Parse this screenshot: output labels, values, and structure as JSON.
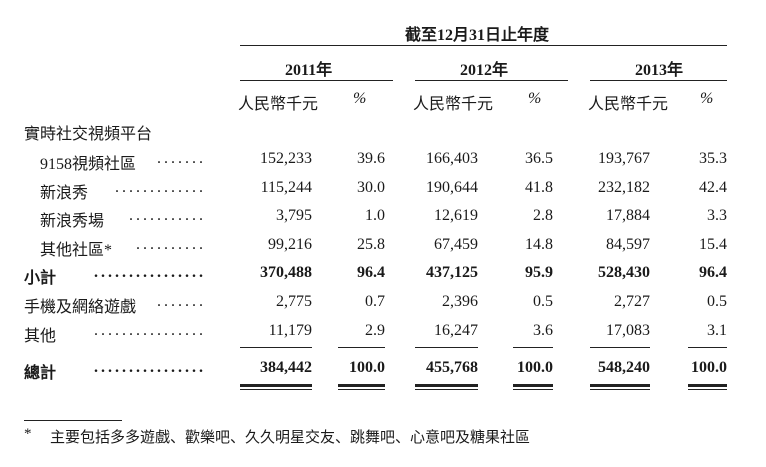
{
  "header": {
    "period_title": "截至12月31日止年度",
    "years": [
      "2011年",
      "2012年",
      "2013年"
    ],
    "unit_label": "人民幣千元",
    "pct_label": "%"
  },
  "section_title": "實時社交視頻平台",
  "rows": [
    {
      "label": "9158視頻社區",
      "dots": ".......",
      "indent": true,
      "bold": false,
      "values": [
        "152,233",
        "39.6",
        "166,403",
        "36.5",
        "193,767",
        "35.3"
      ]
    },
    {
      "label": "新浪秀",
      "dots": ".............",
      "indent": true,
      "bold": false,
      "values": [
        "115,244",
        "30.0",
        "190,644",
        "41.8",
        "232,182",
        "42.4"
      ]
    },
    {
      "label": "新浪秀場",
      "dots": "...........",
      "indent": true,
      "bold": false,
      "values": [
        "3,795",
        "1.0",
        "12,619",
        "2.8",
        "17,884",
        "3.3"
      ]
    },
    {
      "label": "其他社區*",
      "dots": "..........",
      "indent": true,
      "bold": false,
      "values": [
        "99,216",
        "25.8",
        "67,459",
        "14.8",
        "84,597",
        "15.4"
      ]
    },
    {
      "label": "小計",
      "dots": "................",
      "indent": false,
      "bold": true,
      "values": [
        "370,488",
        "96.4",
        "437,125",
        "95.9",
        "528,430",
        "96.4"
      ]
    },
    {
      "label": "手機及網絡遊戲",
      "dots": ".......",
      "indent": false,
      "bold": false,
      "values": [
        "2,775",
        "0.7",
        "2,396",
        "0.5",
        "2,727",
        "0.5"
      ]
    },
    {
      "label": "其他",
      "dots": "................",
      "indent": false,
      "bold": false,
      "values": [
        "11,179",
        "2.9",
        "16,247",
        "3.6",
        "17,083",
        "3.1"
      ]
    },
    {
      "label": "總計",
      "dots": "................",
      "indent": false,
      "bold": true,
      "values": [
        "384,442",
        "100.0",
        "455,768",
        "100.0",
        "548,240",
        "100.0"
      ]
    }
  ],
  "footnote": {
    "marker": "*",
    "text": "主要包括多多遊戲、歡樂吧、久久明星交友、跳舞吧、心意吧及糖果社區"
  }
}
